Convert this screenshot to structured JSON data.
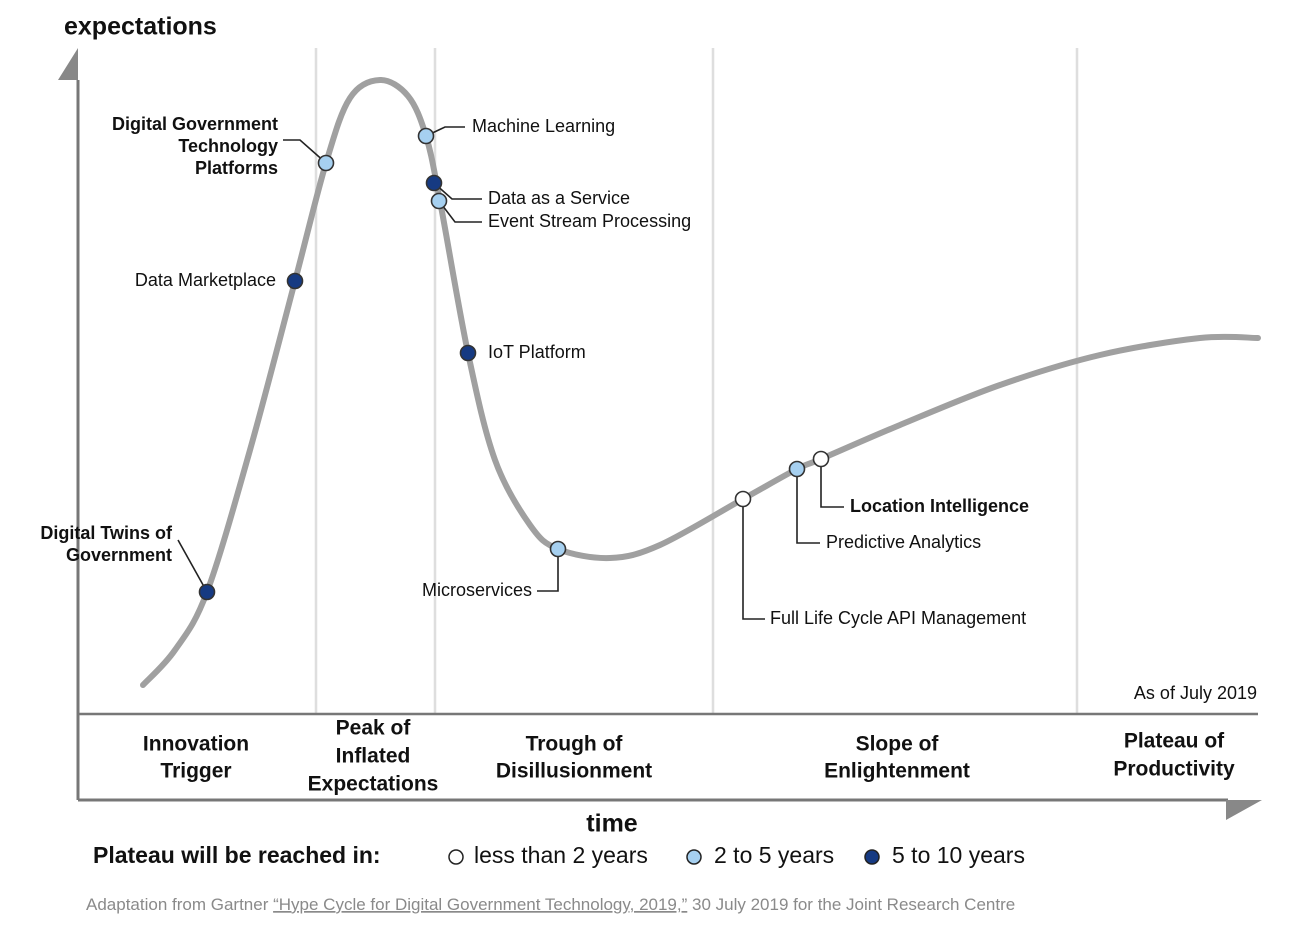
{
  "axes": {
    "y_label": "expectations",
    "x_label": "time",
    "note": "As of July 2019"
  },
  "phases": [
    {
      "lines": [
        "Innovation",
        "Trigger"
      ]
    },
    {
      "lines": [
        "Peak of",
        "Inflated",
        "Expectations"
      ]
    },
    {
      "lines": [
        "Trough of",
        "Disillusionment"
      ]
    },
    {
      "lines": [
        "Slope of",
        "Enlightenment"
      ]
    },
    {
      "lines": [
        "Plateau of",
        "Productivity"
      ]
    }
  ],
  "technologies": [
    {
      "lines": [
        "Digital Government",
        "Technology",
        "Platforms"
      ],
      "plateau": "2 to 5 years"
    },
    {
      "lines": [
        "Data Marketplace"
      ],
      "plateau": "5 to 10 years"
    },
    {
      "lines": [
        "Digital Twins of",
        "Government"
      ],
      "plateau": "5 to 10 years"
    },
    {
      "lines": [
        "Machine Learning"
      ],
      "plateau": "2 to 5 years"
    },
    {
      "lines": [
        "Data as a Service"
      ],
      "plateau": "5 to 10 years"
    },
    {
      "lines": [
        "Event Stream Processing"
      ],
      "plateau": "2 to 5 years"
    },
    {
      "lines": [
        "IoT Platform"
      ],
      "plateau": "5 to 10 years"
    },
    {
      "lines": [
        "Microservices"
      ],
      "plateau": "2 to 5 years"
    },
    {
      "lines": [
        "Full Life Cycle API Management"
      ],
      "plateau": "less than 2 years"
    },
    {
      "lines": [
        "Predictive Analytics"
      ],
      "plateau": "2 to 5 years"
    },
    {
      "lines": [
        "Location Intelligence"
      ],
      "plateau": "less than 2 years"
    }
  ],
  "legend": {
    "title": "Plateau will be reached in:",
    "items": [
      {
        "label": "less than 2 years",
        "color": "#ffffff"
      },
      {
        "label": "2 to 5 years",
        "color": "#a6d0f0"
      },
      {
        "label": "5 to 10 years",
        "color": "#163a82"
      }
    ]
  },
  "footnote": {
    "prefix": "Adaptation from Gartner ",
    "link": "“Hype Cycle for Digital Government Technology, 2019,”",
    "suffix": " 30 July 2019 for the  Joint Research Centre"
  }
}
